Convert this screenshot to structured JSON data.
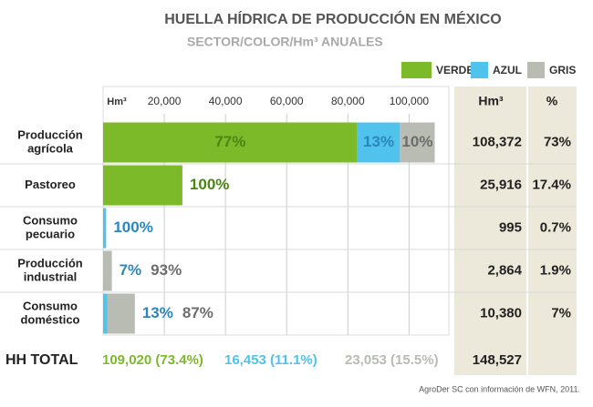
{
  "chart_data": {
    "type": "stacked-barh",
    "title": "HUELLA HÍDRICA DE PRODUCCIÓN EN MÉXICO",
    "subtitle": "SECTOR/COLOR/Hm³ ANUALES",
    "xlabel": "Hm³",
    "categories": [
      [
        "Producción",
        "agrícola"
      ],
      [
        "Pastoreo"
      ],
      [
        "Consumo",
        "pecuario"
      ],
      [
        "Producción",
        "industrial"
      ],
      [
        "Consumo",
        "doméstico"
      ]
    ],
    "series": [
      {
        "name": "VERDE",
        "color": "#7dba2a",
        "label_color": "#4a8612",
        "values": [
          83104,
          25916,
          0,
          0,
          0
        ],
        "value_labels": [
          "77%",
          "100%",
          null,
          null,
          null
        ]
      },
      {
        "name": "AZUL",
        "color": "#4fc3ec",
        "label_color": "#2a86bd",
        "values": [
          13909,
          0,
          995,
          200,
          1349
        ],
        "value_labels": [
          "13%",
          null,
          "100%",
          "7%",
          "13%"
        ]
      },
      {
        "name": "GRIS",
        "color": "#b8bcb3",
        "label_color": "#6d6d6d",
        "values": [
          11359,
          0,
          0,
          2664,
          9031
        ],
        "value_labels": [
          "10%",
          null,
          null,
          "93%",
          "87%"
        ]
      }
    ],
    "xlim": [
      0,
      113000
    ],
    "xticks": [
      {
        "value": 20000,
        "label": "20,000"
      },
      {
        "value": 40000,
        "label": "40,000"
      },
      {
        "value": 60000,
        "label": "60,000"
      },
      {
        "value": 80000,
        "label": "80,000"
      },
      {
        "value": 100000,
        "label": "100,000"
      }
    ],
    "grid": true,
    "table": {
      "headers": [
        "Hm³",
        "%"
      ],
      "rows": [
        [
          "108,372",
          "73%"
        ],
        [
          "25,916",
          "17.4%"
        ],
        [
          "995",
          "0.7%"
        ],
        [
          "2,864",
          "1.9%"
        ],
        [
          "10,380",
          "7%"
        ]
      ]
    },
    "total_row": {
      "label": "HH TOTAL",
      "cells": [
        "109,020 (73.4%)",
        "16,453 (11.1%)",
        "23,053 (15.5%)"
      ],
      "total": "148,527"
    },
    "source": "AgroDer SC con información de WFN, 2011."
  }
}
